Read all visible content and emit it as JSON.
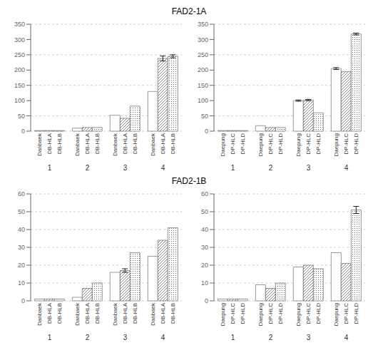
{
  "chart_data": [
    {
      "type": "bar",
      "title": "FAD2-1A",
      "categories": [
        "1",
        "2",
        "3",
        "4"
      ],
      "series": [
        {
          "name": "Danbaek",
          "values": [
            2,
            10,
            52,
            130
          ],
          "errors": [
            0,
            0,
            0,
            0
          ]
        },
        {
          "name": "DB-HLA",
          "values": [
            2,
            12,
            42,
            238
          ],
          "errors": [
            0,
            0,
            0,
            8
          ]
        },
        {
          "name": "DB-HLB",
          "values": [
            2,
            12,
            82,
            245
          ],
          "errors": [
            0,
            0,
            0,
            5
          ]
        }
      ],
      "color": "#555555",
      "ylim": [
        0,
        350
      ],
      "yticks": [
        0,
        50,
        100,
        150,
        200,
        250,
        300,
        350
      ],
      "grid": true
    },
    {
      "type": "bar",
      "categories": [
        "1",
        "2",
        "3",
        "4"
      ],
      "series": [
        {
          "name": "Daepung",
          "values": [
            2,
            18,
            100,
            205
          ],
          "errors": [
            0,
            0,
            2,
            3
          ]
        },
        {
          "name": "DP-HLC",
          "values": [
            2,
            12,
            102,
            195
          ],
          "errors": [
            0,
            0,
            2,
            0
          ]
        },
        {
          "name": "DP-HLD",
          "values": [
            2,
            12,
            60,
            318
          ],
          "errors": [
            0,
            0,
            0,
            3
          ]
        }
      ],
      "color": "#555555",
      "ylim": [
        0,
        350
      ],
      "yticks": [
        0,
        50,
        100,
        150,
        200,
        250,
        300,
        350
      ],
      "grid": true
    },
    {
      "type": "bar",
      "title": "FAD2-1B",
      "categories": [
        "1",
        "2",
        "3",
        "4"
      ],
      "series": [
        {
          "name": "Danbaek",
          "values": [
            1,
            2,
            16,
            25
          ],
          "errors": [
            0,
            0,
            0,
            0
          ]
        },
        {
          "name": "DB-HLA",
          "values": [
            1,
            7,
            17,
            34
          ],
          "errors": [
            0,
            0,
            1,
            0
          ]
        },
        {
          "name": "DB-HLB",
          "values": [
            1,
            10,
            27,
            41
          ],
          "errors": [
            0,
            0,
            0,
            0
          ]
        }
      ],
      "color": "#555555",
      "ylim": [
        0,
        60
      ],
      "yticks": [
        0,
        10,
        20,
        30,
        40,
        50,
        60
      ],
      "grid": true
    },
    {
      "type": "bar",
      "categories": [
        "1",
        "2",
        "3",
        "4"
      ],
      "series": [
        {
          "name": "Daepung",
          "values": [
            1,
            9,
            19,
            27
          ],
          "errors": [
            0,
            0,
            0,
            0
          ]
        },
        {
          "name": "DP-HLC",
          "values": [
            1,
            7,
            20,
            21
          ],
          "errors": [
            0,
            0,
            0,
            0
          ]
        },
        {
          "name": "DP-HLD",
          "values": [
            1,
            10,
            18,
            51
          ],
          "errors": [
            0,
            0,
            0,
            2
          ]
        }
      ],
      "color": "#555555",
      "ylim": [
        0,
        60
      ],
      "yticks": [
        0,
        10,
        20,
        30,
        40,
        50,
        60
      ],
      "grid": true
    }
  ]
}
